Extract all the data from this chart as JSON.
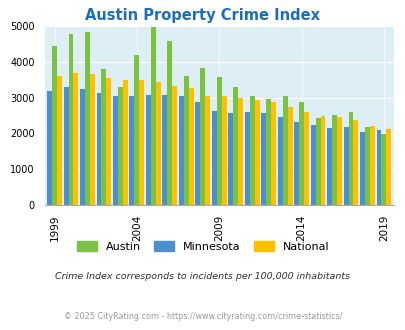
{
  "title": "Austin Property Crime Index",
  "title_color": "#1a6ebd",
  "subtitle": "Crime Index corresponds to incidents per 100,000 inhabitants",
  "footer": "© 2025 CityRating.com - https://www.cityrating.com/crime-statistics/",
  "years": [
    1999,
    2000,
    2001,
    2002,
    2003,
    2004,
    2005,
    2006,
    2007,
    2008,
    2009,
    2010,
    2011,
    2012,
    2013,
    2014,
    2015,
    2016,
    2017,
    2018,
    2019
  ],
  "austin": [
    4450,
    4800,
    4830,
    3800,
    3300,
    4200,
    4970,
    4600,
    3600,
    3820,
    3580,
    3310,
    3060,
    2960,
    3060,
    2890,
    2430,
    2500,
    2600,
    2190,
    1970
  ],
  "minnesota": [
    3200,
    3300,
    3250,
    3130,
    3060,
    3060,
    3080,
    3080,
    3060,
    2890,
    2630,
    2570,
    2590,
    2570,
    2450,
    2310,
    2220,
    2150,
    2180,
    2040,
    2090
  ],
  "national": [
    3600,
    3680,
    3660,
    3560,
    3500,
    3490,
    3440,
    3330,
    3280,
    3060,
    3040,
    2990,
    2930,
    2880,
    2750,
    2600,
    2490,
    2450,
    2360,
    2200,
    2110
  ],
  "austin_color": "#7bc142",
  "minnesota_color": "#4d8fcc",
  "national_color": "#ffc000",
  "ylim": [
    0,
    5000
  ],
  "yticks": [
    0,
    1000,
    2000,
    3000,
    4000,
    5000
  ],
  "bg_color": "#ddeef5",
  "grid_color": "#ffffff",
  "bar_width": 0.3,
  "tick_years": [
    1999,
    2004,
    2009,
    2014,
    2019
  ]
}
